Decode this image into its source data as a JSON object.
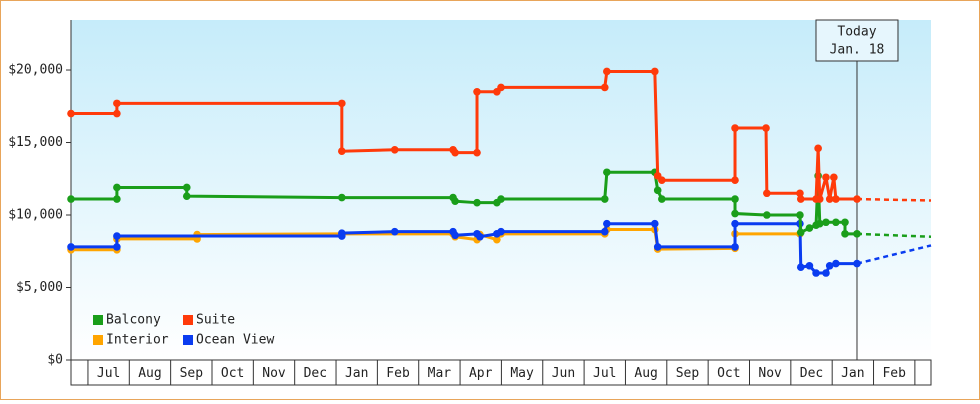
{
  "chart_data": {
    "type": "line",
    "ylim": [
      0,
      23450
    ],
    "yticks": [
      {
        "value": 0,
        "label": "$0"
      },
      {
        "value": 5000,
        "label": "$5,000"
      },
      {
        "value": 10000,
        "label": "$10,000"
      },
      {
        "value": 15000,
        "label": "$15,000"
      },
      {
        "value": 20000,
        "label": "$20,000"
      }
    ],
    "xlim": [
      -0.41,
      20.39
    ],
    "xticks": [
      {
        "value": 0.5,
        "label": "Jul"
      },
      {
        "value": 1.5,
        "label": "Aug"
      },
      {
        "value": 2.5,
        "label": "Sep"
      },
      {
        "value": 3.5,
        "label": "Oct"
      },
      {
        "value": 4.5,
        "label": "Nov"
      },
      {
        "value": 5.5,
        "label": "Dec"
      },
      {
        "value": 6.5,
        "label": "Jan"
      },
      {
        "value": 7.5,
        "label": "Feb"
      },
      {
        "value": 8.5,
        "label": "Mar"
      },
      {
        "value": 9.5,
        "label": "Apr"
      },
      {
        "value": 10.5,
        "label": "May"
      },
      {
        "value": 11.5,
        "label": "Jun"
      },
      {
        "value": 12.5,
        "label": "Jul"
      },
      {
        "value": 13.5,
        "label": "Aug"
      },
      {
        "value": 14.5,
        "label": "Sep"
      },
      {
        "value": 15.5,
        "label": "Oct"
      },
      {
        "value": 16.5,
        "label": "Nov"
      },
      {
        "value": 17.5,
        "label": "Dec"
      },
      {
        "value": 18.5,
        "label": "Jan"
      },
      {
        "value": 19.5,
        "label": "Feb"
      }
    ],
    "annotation": {
      "x": 18.6,
      "lines": [
        "Today",
        "Jan. 18"
      ]
    },
    "legend": "lower left",
    "series": [
      {
        "name": "Balcony",
        "color": "#1a9e1a",
        "x": [
          -0.41,
          0.7,
          0.7,
          2.39,
          2.39,
          6.14,
          8.83,
          8.88,
          9.41,
          9.89,
          9.99,
          12.5,
          12.55,
          13.71,
          13.78,
          13.88,
          15.65,
          15.65,
          16.42,
          17.22,
          17.24,
          17.45,
          17.61,
          17.66,
          17.7,
          17.85,
          18.09,
          18.31,
          18.31,
          18.6
        ],
        "values": [
          11100,
          11100,
          11900,
          11900,
          11300,
          11200,
          11200,
          10950,
          10850,
          10850,
          11100,
          11100,
          12950,
          12950,
          11700,
          11100,
          11100,
          10100,
          10000,
          10000,
          8800,
          9100,
          9300,
          12700,
          9400,
          9500,
          9500,
          9500,
          8700,
          8700
        ],
        "forecast": 8500
      },
      {
        "name": "Suite",
        "color": "#ff3a0a",
        "x": [
          -0.41,
          0.7,
          0.7,
          6.14,
          6.14,
          7.42,
          8.83,
          8.88,
          9.41,
          9.41,
          9.89,
          9.99,
          12.5,
          12.55,
          13.71,
          13.78,
          13.88,
          15.65,
          15.65,
          16.4,
          16.42,
          17.22,
          17.24,
          17.61,
          17.66,
          17.7,
          17.85,
          17.94,
          18.04,
          18.09,
          18.6
        ],
        "values": [
          17000,
          17000,
          17700,
          17700,
          14400,
          14500,
          14500,
          14300,
          14300,
          18500,
          18500,
          18800,
          18800,
          19900,
          19900,
          12700,
          12400,
          12400,
          16000,
          16000,
          11500,
          11500,
          11100,
          11100,
          14600,
          11100,
          12600,
          11100,
          12600,
          11100,
          11100
        ],
        "forecast": 11000
      },
      {
        "name": "Interior",
        "color": "#ffa500",
        "x": [
          -0.41,
          0.7,
          0.7,
          2.64,
          2.64,
          6.14,
          8.83,
          8.88,
          9.41,
          9.48,
          9.89,
          9.99,
          12.5,
          12.55,
          13.71,
          13.78,
          15.65,
          15.65,
          17.22
        ],
        "values": [
          7600,
          7600,
          8350,
          8350,
          8650,
          8700,
          8700,
          8500,
          8300,
          8650,
          8300,
          8700,
          8700,
          9000,
          9000,
          7650,
          7700,
          8700,
          8700
        ]
      },
      {
        "name": "Ocean View",
        "color": "#0a3cf0",
        "x": [
          -0.41,
          0.7,
          0.7,
          6.14,
          6.14,
          7.42,
          8.83,
          8.88,
          9.41,
          9.48,
          9.89,
          9.99,
          12.5,
          12.55,
          13.71,
          13.78,
          15.65,
          15.65,
          17.22,
          17.24,
          17.45,
          17.61,
          17.85,
          17.94,
          18.09,
          18.6
        ],
        "values": [
          7800,
          7800,
          8550,
          8550,
          8750,
          8850,
          8850,
          8600,
          8700,
          8500,
          8700,
          8850,
          8850,
          9400,
          9400,
          7800,
          7800,
          9400,
          9400,
          6400,
          6500,
          6000,
          6000,
          6500,
          6650,
          6650
        ],
        "forecast": 7900
      }
    ]
  }
}
